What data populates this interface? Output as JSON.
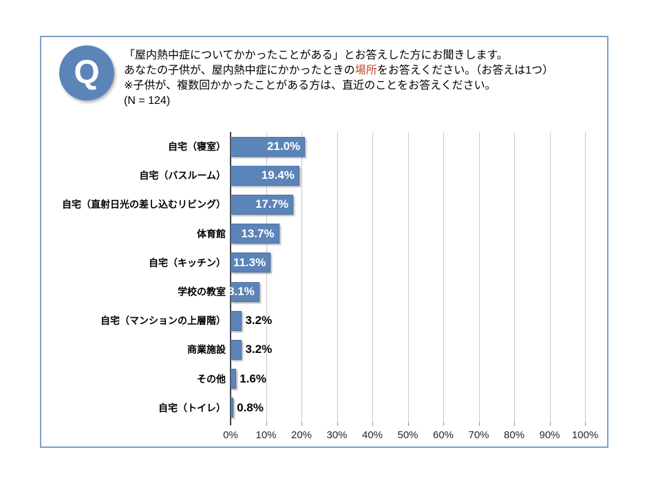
{
  "question": {
    "badge": "Q",
    "line1": "「屋内熱中症についてかかったことがある」とお答えした方にお聞きします。",
    "line2_pre": "あなたの子供が、屋内熱中症にかかったときの",
    "line2_highlight": "場所",
    "line2_post": "をお答えください。（お答えは1つ）",
    "line3": "※子供が、複数回かかったことがある方は、直近のことをお答えください。",
    "sample_size_label": "(N = 124)"
  },
  "colors": {
    "bar": "#5b84b8",
    "badge": "#5b84b8",
    "highlight": "#c54a2d",
    "frame_border": "#7ba0c7",
    "gridline": "#c9c9c9",
    "axis": "#404040"
  },
  "chart_data": {
    "type": "bar",
    "orientation": "horizontal",
    "title": "",
    "xlabel": "",
    "ylabel": "",
    "sample_size": 124,
    "categories": [
      "自宅（寝室）",
      "自宅（バスルーム）",
      "自宅（直射日光の差し込むリビング）",
      "体育館",
      "自宅（キッチン）",
      "学校の教室",
      "自宅（マンションの上層階）",
      "商業施設",
      "その他",
      "自宅（トイレ）"
    ],
    "values": [
      21.0,
      19.4,
      17.7,
      13.7,
      11.3,
      8.1,
      3.2,
      3.2,
      1.6,
      0.8
    ],
    "value_labels": [
      "21.0%",
      "19.4%",
      "17.7%",
      "13.7%",
      "11.3%",
      "8.1%",
      "3.2%",
      "3.2%",
      "1.6%",
      "0.8%"
    ],
    "x_ticks": [
      "0%",
      "10%",
      "20%",
      "30%",
      "40%",
      "50%",
      "60%",
      "70%",
      "80%",
      "90%",
      "100%"
    ],
    "xlim": [
      0,
      100
    ],
    "grid": "vertical-major",
    "legend": "none"
  }
}
